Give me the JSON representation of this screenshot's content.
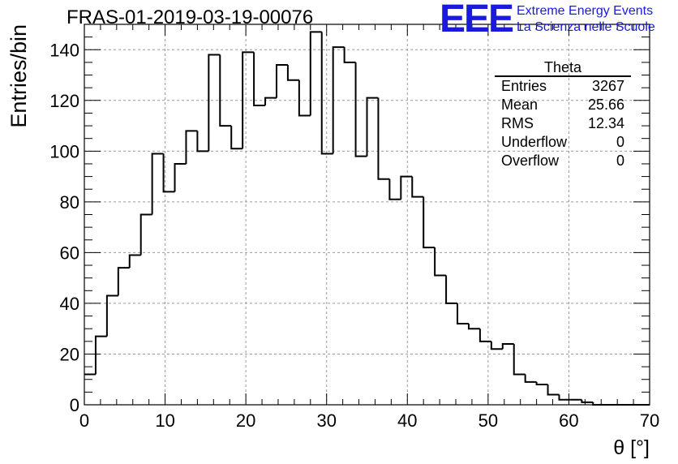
{
  "header": {
    "run_title": "FRAS-01-2019-03-19-00076"
  },
  "logo": {
    "mark": "EEE",
    "line1": "Extreme Energy Events",
    "line2": "La Scienza nelle Scuole",
    "color": "#1a1adc"
  },
  "stats_box": {
    "title": "Theta",
    "rows": [
      {
        "label": "Entries",
        "value": "3267"
      },
      {
        "label": "Mean",
        "value": "25.66"
      },
      {
        "label": "RMS",
        "value": "12.34"
      },
      {
        "label": "Underflow",
        "value": "0"
      },
      {
        "label": "Overflow",
        "value": "0"
      }
    ]
  },
  "chart_data": {
    "type": "bar",
    "style": "step-histogram",
    "title": "FRAS-01-2019-03-19-00076",
    "xlabel": "θ [°]",
    "ylabel": "Entries/bin",
    "xlim": [
      0,
      70
    ],
    "ylim": [
      0,
      150
    ],
    "bin_width": 1.4,
    "bin_start": 0,
    "xticks": [
      0,
      10,
      20,
      30,
      40,
      50,
      60,
      70
    ],
    "yticks": [
      0,
      20,
      40,
      60,
      80,
      100,
      120,
      140
    ],
    "grid": true,
    "values": [
      12,
      27,
      43,
      54,
      59,
      75,
      99,
      84,
      95,
      108,
      100,
      138,
      110,
      101,
      139,
      118,
      121,
      134,
      128,
      114,
      147,
      99,
      141,
      135,
      98,
      121,
      89,
      81,
      90,
      82,
      62,
      51,
      40,
      32,
      30,
      25,
      22,
      24,
      12,
      9,
      8,
      4,
      2,
      2,
      1,
      0,
      0,
      0,
      0,
      0
    ],
    "line_color": "#000000",
    "grid_color": "#9a9a9a"
  }
}
